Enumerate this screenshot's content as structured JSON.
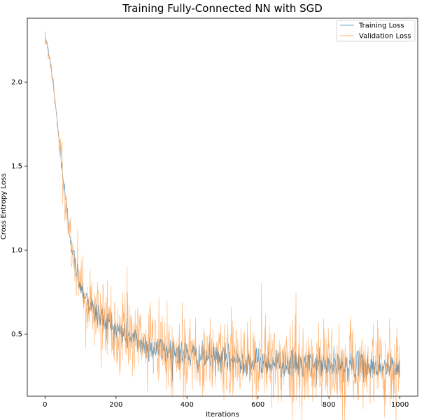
{
  "chart_data": {
    "type": "line",
    "title": "Training Fully-Connected NN with SGD",
    "xlabel": "Iterations",
    "ylabel": "Cross Entropy Loss",
    "xlim": [
      -50,
      1050
    ],
    "ylim": [
      0.13,
      2.38
    ],
    "xticks": [
      0,
      200,
      400,
      600,
      800,
      1000
    ],
    "yticks": [
      0.5,
      1.0,
      1.5,
      2.0
    ],
    "xtick_labels": [
      "0",
      "200",
      "400",
      "600",
      "800",
      "1000"
    ],
    "ytick_labels": [
      "0.5",
      "1.0",
      "1.5",
      "2.0"
    ],
    "grid": false,
    "legend": "top-right",
    "series": [
      {
        "name": "Training Loss",
        "color": "#1f77b4",
        "x": [
          0,
          10,
          20,
          30,
          40,
          50,
          60,
          70,
          80,
          90,
          100,
          120,
          140,
          160,
          180,
          200,
          225,
          250,
          275,
          300,
          350,
          400,
          450,
          500,
          550,
          600,
          650,
          700,
          750,
          800,
          850,
          900,
          950,
          1000
        ],
        "y": [
          2.28,
          2.18,
          2.04,
          1.85,
          1.65,
          1.45,
          1.26,
          1.1,
          0.97,
          0.87,
          0.79,
          0.7,
          0.63,
          0.59,
          0.56,
          0.53,
          0.5,
          0.47,
          0.44,
          0.42,
          0.4,
          0.38,
          0.36,
          0.35,
          0.34,
          0.33,
          0.33,
          0.32,
          0.32,
          0.31,
          0.31,
          0.31,
          0.3,
          0.3
        ],
        "noise": 0.03
      },
      {
        "name": "Validation Loss",
        "color": "#ff7f0e",
        "x": [
          0,
          10,
          20,
          30,
          40,
          50,
          60,
          70,
          80,
          90,
          100,
          120,
          140,
          160,
          180,
          200,
          225,
          250,
          275,
          300,
          350,
          400,
          450,
          500,
          550,
          600,
          650,
          700,
          750,
          800,
          850,
          900,
          950,
          1000
        ],
        "y": [
          2.28,
          2.18,
          2.04,
          1.85,
          1.65,
          1.45,
          1.26,
          1.1,
          0.97,
          0.87,
          0.79,
          0.7,
          0.63,
          0.59,
          0.56,
          0.53,
          0.5,
          0.47,
          0.44,
          0.42,
          0.4,
          0.38,
          0.36,
          0.35,
          0.34,
          0.33,
          0.33,
          0.32,
          0.32,
          0.31,
          0.31,
          0.31,
          0.3,
          0.3
        ],
        "noise": 0.09
      }
    ]
  }
}
